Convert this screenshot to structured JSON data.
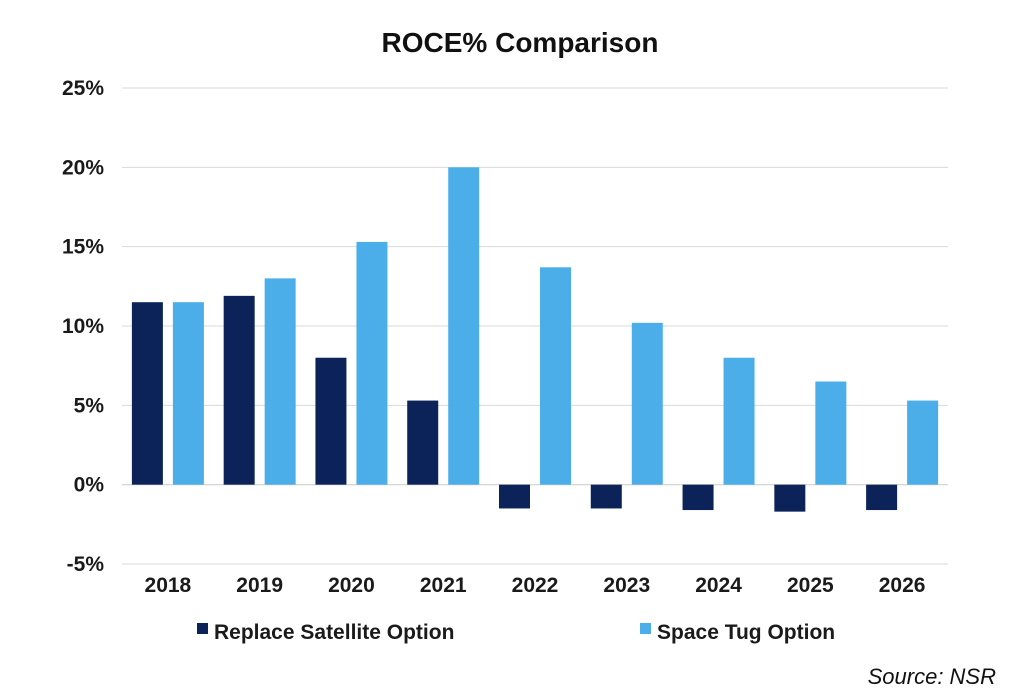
{
  "chart_data": {
    "type": "bar",
    "title": "ROCE% Comparison",
    "categories": [
      "2018",
      "2019",
      "2020",
      "2021",
      "2022",
      "2023",
      "2024",
      "2025",
      "2026"
    ],
    "series": [
      {
        "name": "Replace Satellite Option",
        "color": "#0c2359",
        "values": [
          11.5,
          11.9,
          8.0,
          5.3,
          -1.5,
          -1.5,
          -1.6,
          -1.7,
          -1.6
        ]
      },
      {
        "name": "Space Tug Option",
        "color": "#4baee8",
        "values": [
          11.5,
          13.0,
          15.3,
          20.0,
          13.7,
          10.2,
          8.0,
          6.5,
          5.3
        ]
      }
    ],
    "ylim": [
      -5,
      25
    ],
    "yticks": [
      -5,
      0,
      5,
      10,
      15,
      20,
      25
    ],
    "ytick_labels": [
      "-5%",
      "0%",
      "5%",
      "10%",
      "15%",
      "20%",
      "25%"
    ],
    "grid": true,
    "legend_position": "bottom",
    "source": "Source: NSR"
  }
}
